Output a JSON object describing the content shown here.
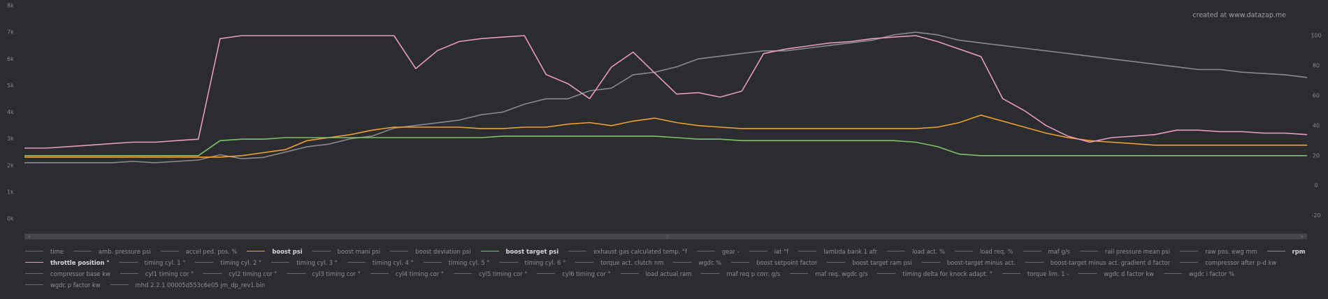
{
  "chart_data": {
    "type": "line",
    "watermark": "created at www.datazap.me",
    "ylim": [
      0,
      8000
    ],
    "yticks": [
      {
        "value": 0,
        "label": "0k"
      },
      {
        "value": 1000,
        "label": "1k"
      },
      {
        "value": 2000,
        "label": "2k"
      },
      {
        "value": 3000,
        "label": "3k"
      },
      {
        "value": 4000,
        "label": "4k"
      },
      {
        "value": 5000,
        "label": "5k"
      },
      {
        "value": 6000,
        "label": "6k"
      },
      {
        "value": 7000,
        "label": "7k"
      },
      {
        "value": 8000,
        "label": "8k"
      }
    ],
    "y2lim": [
      -22,
      120
    ],
    "y2ticks": [
      -20,
      0,
      20,
      40,
      60,
      80,
      100
    ],
    "series": [
      {
        "name": "time"
      },
      {
        "name": "amb. pressure psi"
      },
      {
        "name": "accel ped. pos. %"
      },
      {
        "name": "boost psi",
        "color": "#f0a030",
        "axis": "y2",
        "values": [
          19,
          19,
          19,
          19,
          19,
          19,
          19,
          19,
          19,
          19,
          20,
          22,
          24,
          30,
          32,
          34,
          37,
          39,
          39,
          39,
          39,
          38,
          38,
          39,
          39,
          41,
          42,
          40,
          43,
          45,
          42,
          40,
          39,
          38,
          38,
          38,
          38,
          38,
          38,
          38,
          38,
          38,
          39,
          42,
          47,
          43,
          39,
          35,
          32,
          30,
          29,
          28,
          27,
          27,
          27,
          27,
          27,
          27,
          27,
          27
        ]
      },
      {
        "name": "boost mani psi"
      },
      {
        "name": "boost deviation psi"
      },
      {
        "name": "boost target psi",
        "color": "#7cc26a",
        "axis": "y2",
        "values": [
          20,
          20,
          20,
          20,
          20,
          20,
          20,
          20,
          20,
          30,
          31,
          31,
          32,
          32,
          32,
          32,
          32,
          32,
          32,
          32,
          32,
          32,
          33,
          33,
          33,
          33,
          33,
          33,
          33,
          33,
          32,
          31,
          31,
          30,
          30,
          30,
          30,
          30,
          30,
          30,
          30,
          29,
          26,
          21,
          20,
          20,
          20,
          20,
          20,
          20,
          20,
          20,
          20,
          20,
          20,
          20,
          20,
          20,
          20,
          20
        ]
      },
      {
        "name": "exhaust gas calculated temp. °f"
      },
      {
        "name": "gear -"
      },
      {
        "name": "iat °f"
      },
      {
        "name": "lambda bank 1 afr"
      },
      {
        "name": "load act. %"
      },
      {
        "name": "load req. %"
      },
      {
        "name": "maf g/s"
      },
      {
        "name": "rail pressure mean psi"
      },
      {
        "name": "raw pos. ewg mm"
      },
      {
        "name": "rpm",
        "color": "#8a8a8e",
        "axis": "y",
        "values": [
          2100,
          2100,
          2100,
          2100,
          2100,
          2150,
          2100,
          2150,
          2200,
          2400,
          2250,
          2300,
          2500,
          2700,
          2800,
          3000,
          3100,
          3400,
          3500,
          3600,
          3700,
          3900,
          4000,
          4300,
          4500,
          4500,
          4800,
          4900,
          5400,
          5500,
          5700,
          6000,
          6100,
          6200,
          6300,
          6300,
          6400,
          6500,
          6600,
          6700,
          6900,
          7000,
          6900,
          6700,
          6600,
          6500,
          6400,
          6300,
          6200,
          6100,
          6000,
          5900,
          5800,
          5700,
          5600,
          5600,
          5500,
          5450,
          5400,
          5300
        ]
      },
      {
        "name": "throttle position °",
        "color": "#e89ac0",
        "axis": "y2",
        "values": [
          25,
          25,
          26,
          27,
          28,
          29,
          29,
          30,
          31,
          98,
          100,
          100,
          100,
          100,
          100,
          100,
          100,
          100,
          78,
          90,
          96,
          98,
          99,
          100,
          74,
          68,
          58,
          79,
          89,
          75,
          61,
          62,
          59,
          63,
          88,
          91,
          93,
          95,
          96,
          98,
          99,
          100,
          96,
          91,
          86,
          58,
          50,
          40,
          33,
          29,
          32,
          33,
          34,
          37,
          37,
          36,
          36,
          35,
          35,
          34
        ]
      },
      {
        "name": "timing cyl. 1 °"
      },
      {
        "name": "timing cyl. 2 °"
      },
      {
        "name": "timing cyl. 3 °"
      },
      {
        "name": "timing cyl. 4 °"
      },
      {
        "name": "timing cyl. 5 °"
      },
      {
        "name": "timing cyl. 6 °"
      },
      {
        "name": "torque act. clutch nm"
      },
      {
        "name": "wgdc %"
      },
      {
        "name": "boost setpoint factor"
      },
      {
        "name": "boost target ram psi"
      },
      {
        "name": "boost-target minus act."
      },
      {
        "name": "boost-target minus act. gradient d factor"
      },
      {
        "name": "compressor after p-d kw"
      },
      {
        "name": "compressor base kw"
      },
      {
        "name": "cyl1 timing cor °"
      },
      {
        "name": "cyl2 timing cor °"
      },
      {
        "name": "cyl3 timing cor °"
      },
      {
        "name": "cyl4 timing cor °"
      },
      {
        "name": "cyl5 timing cor °"
      },
      {
        "name": "cyl6 timing cor °"
      },
      {
        "name": "load actual ram"
      },
      {
        "name": "maf req p corr. g/s"
      },
      {
        "name": "maf req. wgdc g/s"
      },
      {
        "name": "timing delta for knock adapt. °"
      },
      {
        "name": "torque lim. 1 -"
      },
      {
        "name": "wgdc d factor kw"
      },
      {
        "name": "wgdc i factor %"
      },
      {
        "name": "wgdc p factor kw"
      },
      {
        "name": "mhd 2.2.1 00005d553c6e05 jm_dp_rev1.bin"
      }
    ]
  }
}
